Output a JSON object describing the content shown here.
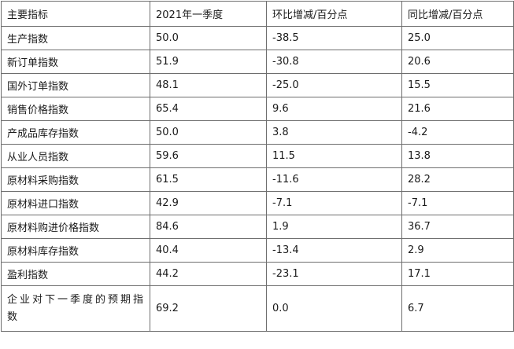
{
  "table": {
    "headers": [
      "主要指标",
      "2021年一季度",
      "环比增减/百分点",
      "同比增减/百分点"
    ],
    "rows": [
      [
        "生产指数",
        "50.0",
        "-38.5",
        "25.0"
      ],
      [
        "新订单指数",
        "51.9",
        "-30.8",
        "20.6"
      ],
      [
        "国外订单指数",
        "48.1",
        "-25.0",
        "15.5"
      ],
      [
        "销售价格指数",
        "65.4",
        "9.6",
        "21.6"
      ],
      [
        "产成品库存指数",
        "50.0",
        "3.8",
        "-4.2"
      ],
      [
        "从业人员指数",
        "59.6",
        "11.5",
        "13.8"
      ],
      [
        "原材料采购指数",
        "61.5",
        "-11.6",
        "28.2"
      ],
      [
        "原材料进口指数",
        "42.9",
        "-7.1",
        "-7.1"
      ],
      [
        "原材料购进价格指数",
        "84.6",
        "1.9",
        "36.7"
      ],
      [
        "原材料库存指数",
        "40.4",
        "-13.4",
        "2.9"
      ],
      [
        "盈利指数",
        "44.2",
        "-23.1",
        "17.1"
      ],
      [
        "企业对下一季度的预期指数",
        "69.2",
        "0.0",
        "6.7"
      ]
    ]
  }
}
